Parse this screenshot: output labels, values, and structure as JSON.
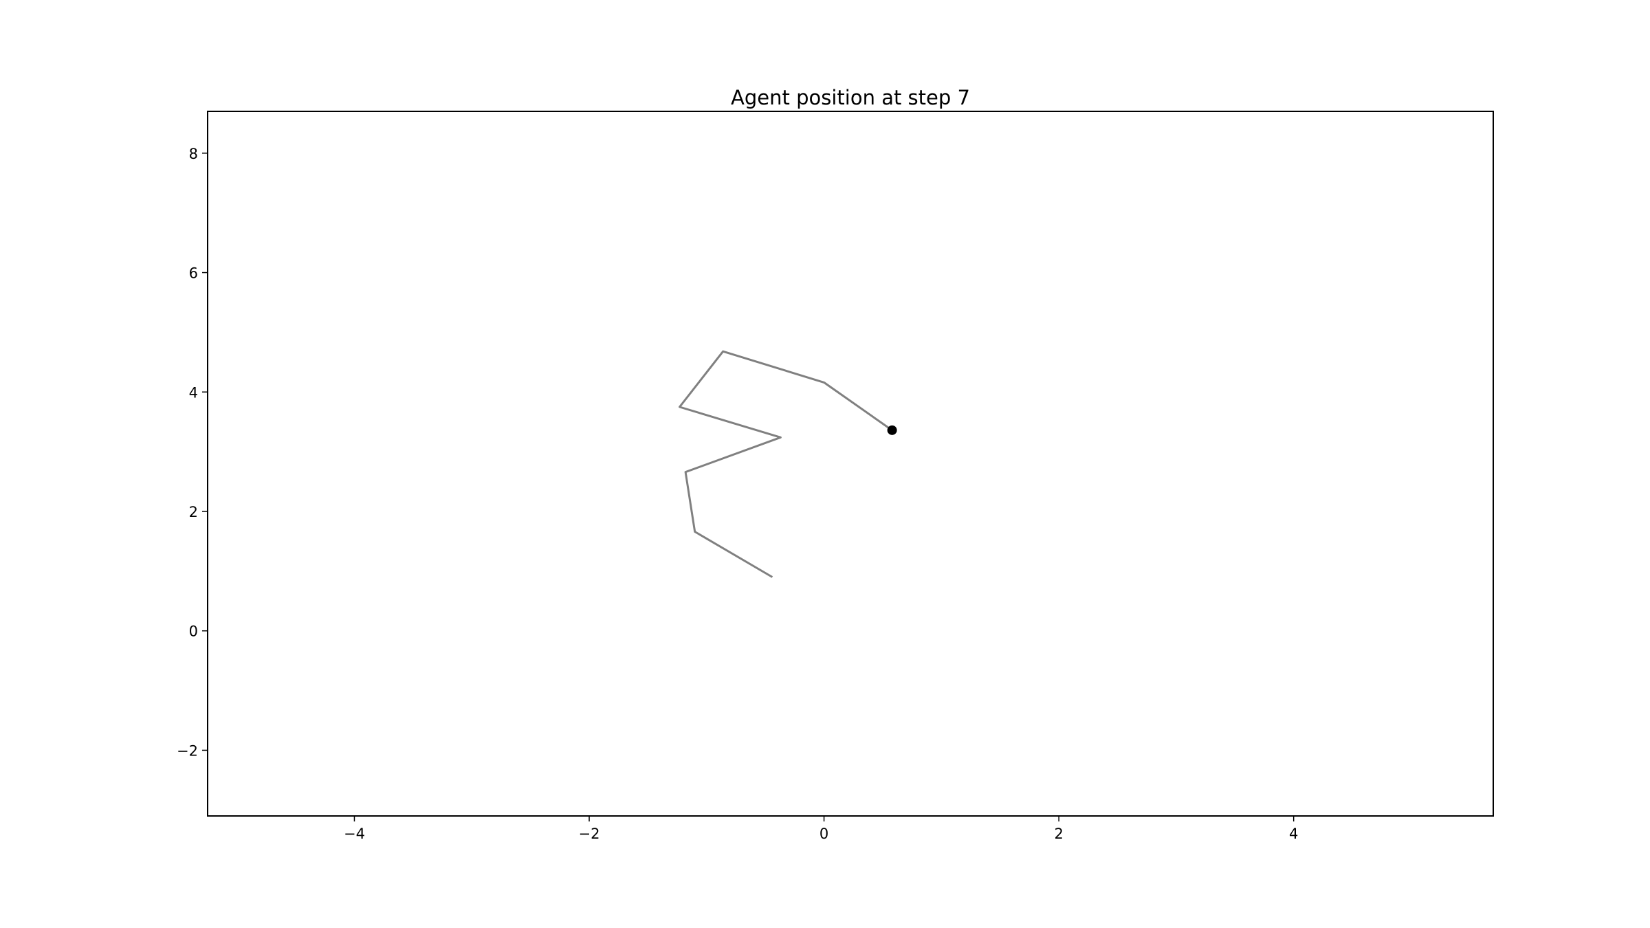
{
  "chart_data": {
    "type": "line",
    "title": "Agent position at step 7",
    "xlabel": "",
    "ylabel": "",
    "xlim": [
      -5.25,
      5.7
    ],
    "ylim": [
      -3.1,
      8.7
    ],
    "x_ticks": [
      -4,
      -2,
      0,
      2,
      4
    ],
    "y_ticks": [
      -2,
      0,
      2,
      4,
      6,
      8
    ],
    "x_tick_labels": [
      "−4",
      "−2",
      "0",
      "2",
      "4"
    ],
    "y_tick_labels": [
      "−2",
      "0",
      "2",
      "4",
      "6",
      "8"
    ],
    "grid": false,
    "legend": "none",
    "series": [
      {
        "kind": "path",
        "color": "#808080",
        "x": [
          -0.44,
          -1.1,
          -1.18,
          -0.37,
          -1.23,
          -0.86,
          0.0,
          0.58
        ],
        "y": [
          0.9,
          1.66,
          2.66,
          3.24,
          3.75,
          4.68,
          4.16,
          3.36
        ]
      },
      {
        "kind": "marker",
        "color": "#000000",
        "x": [
          0.58
        ],
        "y": [
          3.36
        ]
      }
    ]
  }
}
